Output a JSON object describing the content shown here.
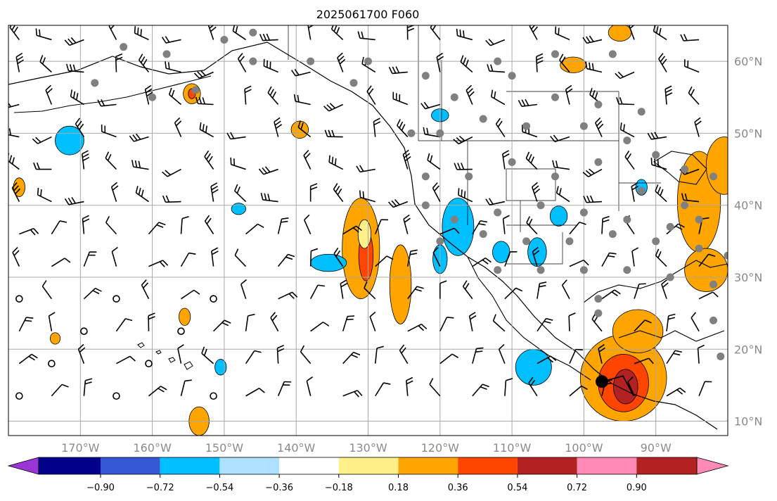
{
  "chart_data": {
    "type": "heatmap",
    "title": "2025061700 F060",
    "map": {
      "projection": "lat-lon",
      "lon_range_deg": [
        -180,
        -80
      ],
      "lat_range_deg": [
        8,
        65
      ],
      "graticule": true,
      "gridline_color": "#a8a8a8",
      "lon_tick_labels": [
        "170°W",
        "160°W",
        "150°W",
        "140°W",
        "130°W",
        "120°W",
        "110°W",
        "100°W",
        "90°W"
      ],
      "lon_ticks": [
        -170,
        -160,
        -150,
        -140,
        -130,
        -120,
        -110,
        -100,
        -90
      ],
      "lat_tick_labels": [
        "10°N",
        "20°N",
        "30°N",
        "40°N",
        "50°N",
        "60°N"
      ],
      "lat_ticks": [
        10,
        20,
        30,
        40,
        50,
        60
      ]
    },
    "colorbar": {
      "orientation": "horizontal",
      "extend": "both",
      "tick_labels": [
        "−0.90",
        "−0.72",
        "−0.54",
        "−0.36",
        "−0.18",
        "0.18",
        "0.36",
        "0.54",
        "0.72",
        "0.90"
      ],
      "levels": [
        -0.9,
        -0.72,
        -0.54,
        -0.36,
        -0.18,
        0.18,
        0.36,
        0.54,
        0.72,
        0.9
      ],
      "colors": [
        "#9a35d6",
        "#00008a",
        "#3558d6",
        "#00bfff",
        "#aee0ff",
        "#ffffff",
        "#fff08a",
        "#ffa500",
        "#ff4500",
        "#b22222",
        "#ff8ab5"
      ]
    },
    "shaded_regions": [
      {
        "level_color": "#ffa500",
        "center": [
          -131,
          34
        ],
        "rx": 2.6,
        "ry": 7
      },
      {
        "level_color": "#ff4500",
        "center": [
          -130.3,
          33
        ],
        "rx": 1.0,
        "ry": 3.5
      },
      {
        "level_color": "#ffa500",
        "center": [
          -125.5,
          29
        ],
        "rx": 1.5,
        "ry": 5.5
      },
      {
        "level_color": "#ffa500",
        "center": [
          -94.5,
          16
        ],
        "rx": 6,
        "ry": 6
      },
      {
        "level_color": "#ff4500",
        "center": [
          -94.5,
          15.3
        ],
        "rx": 3.5,
        "ry": 4
      },
      {
        "level_color": "#b22222",
        "center": [
          -94.2,
          14.8
        ],
        "rx": 1.7,
        "ry": 2.4
      },
      {
        "level_color": "#ffa500",
        "center": [
          -92.5,
          22.5
        ],
        "rx": 3.5,
        "ry": 3
      },
      {
        "level_color": "#ffa500",
        "center": [
          -84,
          40.5
        ],
        "rx": 3,
        "ry": 7
      },
      {
        "level_color": "#ffa500",
        "center": [
          -80.5,
          45.5
        ],
        "rx": 2.5,
        "ry": 4
      },
      {
        "level_color": "#ffa500",
        "center": [
          -83,
          31
        ],
        "rx": 3,
        "ry": 3
      },
      {
        "level_color": "#ffa500",
        "center": [
          -154.5,
          55.5
        ],
        "rx": 1.2,
        "ry": 1.4
      },
      {
        "level_color": "#ff4500",
        "center": [
          -154.5,
          55.5
        ],
        "rx": 0.5,
        "ry": 0.7
      },
      {
        "level_color": "#ffa500",
        "center": [
          -139.5,
          50.5
        ],
        "rx": 1.2,
        "ry": 1.2
      },
      {
        "level_color": "#ffa500",
        "center": [
          -101.5,
          59.5
        ],
        "rx": 1.8,
        "ry": 1.1
      },
      {
        "level_color": "#ffa500",
        "center": [
          -95,
          64
        ],
        "rx": 1.6,
        "ry": 1.2
      },
      {
        "level_color": "#ffa500",
        "center": [
          -153.5,
          10
        ],
        "rx": 1.4,
        "ry": 2
      },
      {
        "level_color": "#ffa500",
        "center": [
          -155.5,
          24.5
        ],
        "rx": 0.8,
        "ry": 1.2
      },
      {
        "level_color": "#ffa500",
        "center": [
          -173.5,
          21.5
        ],
        "rx": 0.7,
        "ry": 0.8
      },
      {
        "level_color": "#ffa500",
        "center": [
          -178.5,
          42.5
        ],
        "rx": 0.8,
        "ry": 1.3
      },
      {
        "level_color": "#fff08a",
        "center": [
          -130.5,
          36
        ],
        "rx": 0.9,
        "ry": 2
      },
      {
        "level_color": "#00bfff",
        "center": [
          -117.5,
          37
        ],
        "rx": 2.2,
        "ry": 4
      },
      {
        "level_color": "#00bfff",
        "center": [
          -120,
          32.5
        ],
        "rx": 1.0,
        "ry": 2
      },
      {
        "level_color": "#00bfff",
        "center": [
          -135.5,
          32
        ],
        "rx": 2.5,
        "ry": 1.2
      },
      {
        "level_color": "#00bfff",
        "center": [
          -111.5,
          33.5
        ],
        "rx": 1.2,
        "ry": 1.5
      },
      {
        "level_color": "#00bfff",
        "center": [
          -106.5,
          33.5
        ],
        "rx": 1.3,
        "ry": 2
      },
      {
        "level_color": "#00bfff",
        "center": [
          -103.5,
          38.5
        ],
        "rx": 1.2,
        "ry": 1.4
      },
      {
        "level_color": "#00bfff",
        "center": [
          -107,
          17.5
        ],
        "rx": 2.5,
        "ry": 2.5
      },
      {
        "level_color": "#00bfff",
        "center": [
          -171.5,
          49
        ],
        "rx": 2,
        "ry": 2
      },
      {
        "level_color": "#00bfff",
        "center": [
          -148,
          39.5
        ],
        "rx": 1,
        "ry": 0.8
      },
      {
        "level_color": "#00bfff",
        "center": [
          -150.5,
          17.5
        ],
        "rx": 0.8,
        "ry": 1.1
      },
      {
        "level_color": "#00bfff",
        "center": [
          -120,
          52.5
        ],
        "rx": 1.2,
        "ry": 0.9
      },
      {
        "level_color": "#00bfff",
        "center": [
          -92,
          42.5
        ],
        "rx": 0.8,
        "ry": 1.1
      }
    ],
    "overlays": [
      {
        "kind": "wind_barbs",
        "spacing_deg": [
          4.5,
          4.5
        ]
      },
      {
        "kind": "station_dots",
        "color": "#808080"
      },
      {
        "kind": "storm_center_marker",
        "lon": -97.5,
        "lat": 15.5,
        "color": "#000000"
      }
    ]
  }
}
